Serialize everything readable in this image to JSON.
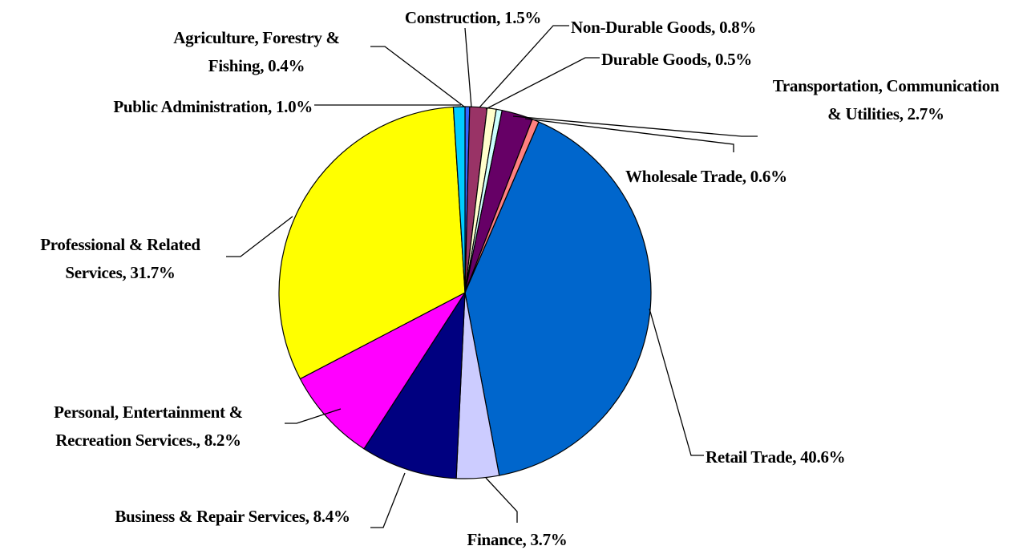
{
  "chart_data": {
    "type": "pie",
    "categories": [
      "Agriculture, Forestry & Fishing,",
      "Construction,",
      "Non-Durable Goods,",
      "Durable Goods,",
      "Transportation, Communication & Utilities,",
      "Wholesale Trade,",
      "Retail Trade,",
      "Finance,",
      "Business & Repair Services,",
      "Personal, Entertainment & Recreation Services.,",
      "Professional & Related Services,",
      "Public Administration,"
    ],
    "values": [
      0.4,
      1.5,
      0.8,
      0.5,
      2.7,
      0.6,
      40.6,
      3.7,
      8.4,
      8.2,
      31.7,
      1.0
    ],
    "value_labels": [
      "0.4%",
      "1.5%",
      "0.8%",
      "0.5%",
      "2.7%",
      "0.6%",
      "40.6%",
      "3.7%",
      "8.4%",
      "8.2%",
      "31.7%",
      "1.0%"
    ],
    "colors": [
      "#3366ff",
      "#993366",
      "#ffffcc",
      "#ccffff",
      "#660066",
      "#ff8080",
      "#0066cc",
      "#ccccff",
      "#000080",
      "#ff00ff",
      "#ffff00",
      "#00ccff"
    ]
  }
}
